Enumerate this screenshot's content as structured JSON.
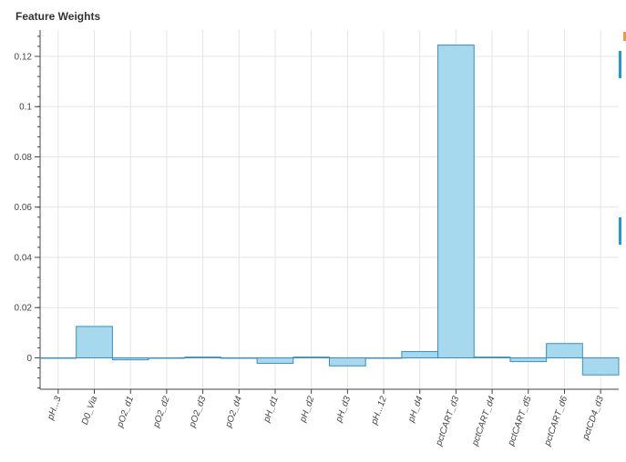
{
  "chart_data": {
    "type": "bar",
    "title": "Feature Weights",
    "xlabel": "",
    "ylabel": "",
    "categories": [
      "pH...3",
      "D0_Via",
      "pO2_d1",
      "pO2_d2",
      "pO2_d3",
      "pO2_d4",
      "pH_d1",
      "pH_d2",
      "pH_d3",
      "pH...12",
      "pH_d4",
      "pctCART_d3",
      "pctCART_d4",
      "pctCART_d5",
      "pctCART_d6",
      "pctCD4_d3"
    ],
    "values": [
      0,
      0.0125,
      -0.0008,
      0,
      0.0003,
      0,
      -0.0022,
      0.0003,
      -0.0032,
      0,
      0.0025,
      0.1245,
      0.0003,
      -0.0015,
      0.0057,
      -0.0068
    ],
    "ylim": [
      -0.0125,
      0.1305
    ],
    "yticks": [
      0,
      0.02,
      0.04,
      0.06,
      0.08,
      0.1,
      0.12
    ],
    "ytick_labels": [
      "0",
      "0.02",
      "0.04",
      "0.06",
      "0.08",
      "0.1",
      "0.12"
    ],
    "grid": true,
    "bar_fill": "#a6d8ee",
    "bar_stroke": "#3a8fbf",
    "toolbar_accent": "#1f9bd1",
    "toolbar_logo_accent": "#f59a3c"
  }
}
